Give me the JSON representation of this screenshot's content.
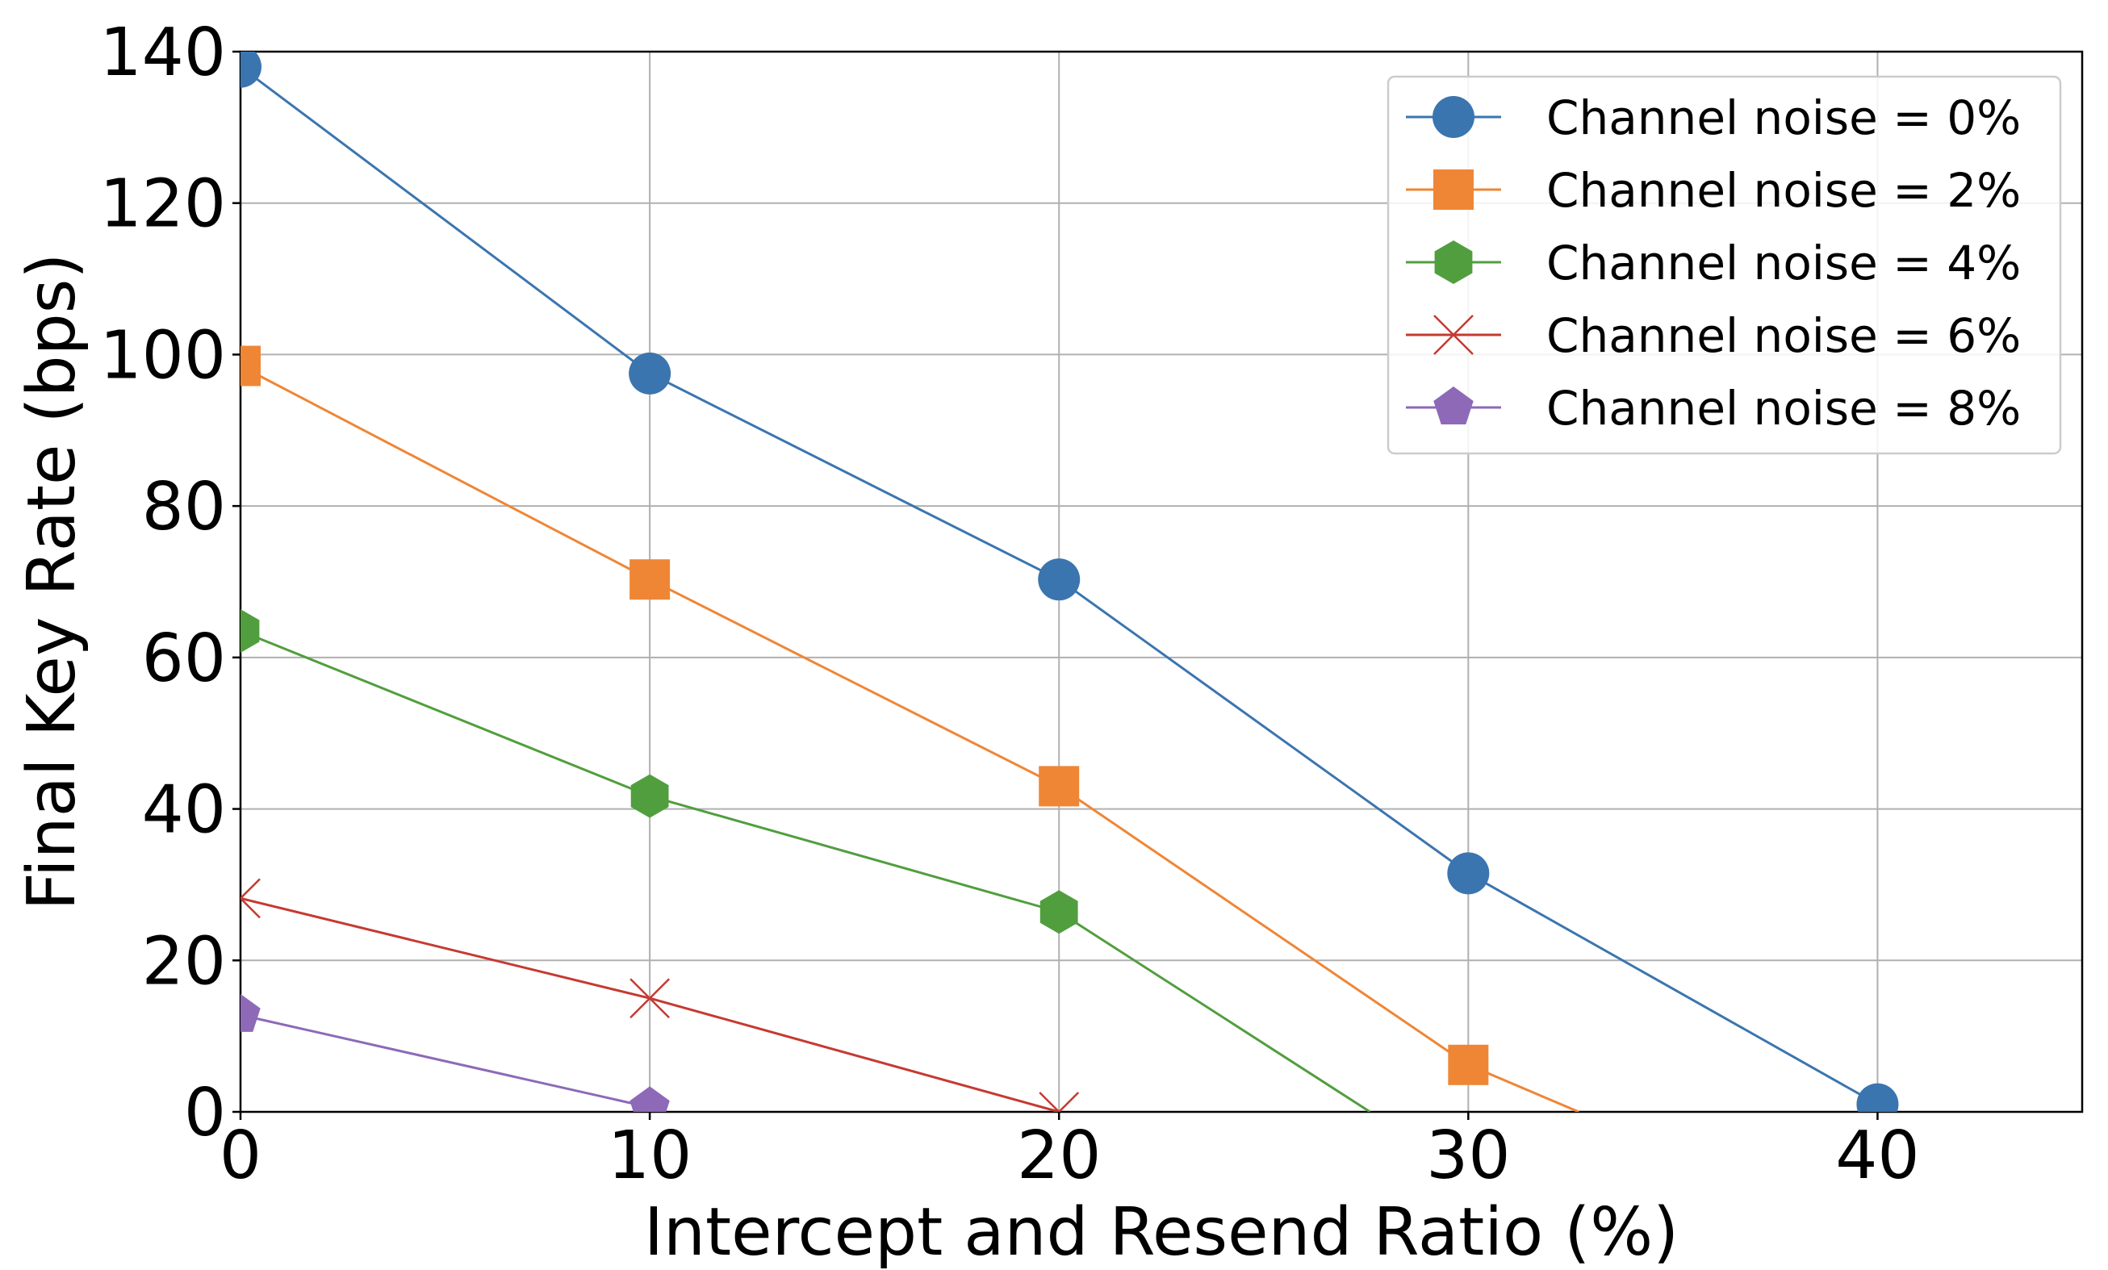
{
  "chart_data": {
    "type": "line",
    "xlabel": "Intercept and Resend Ratio (%)",
    "ylabel": "Final Key Rate (bps)",
    "xlim": [
      0,
      45
    ],
    "ylim": [
      0,
      140
    ],
    "xticks": [
      "0",
      "10",
      "20",
      "30",
      "40"
    ],
    "yticks": [
      "0",
      "20",
      "40",
      "60",
      "80",
      "100",
      "120",
      "140"
    ],
    "grid": true,
    "legend_position": "top-right",
    "series": [
      {
        "name": "Channel noise = 0%",
        "color": "#3b75af",
        "marker": "circle",
        "x": [
          0,
          10,
          20,
          30,
          40
        ],
        "y": [
          138,
          97.5,
          70.3,
          31.5,
          1
        ]
      },
      {
        "name": "Channel noise = 2%",
        "color": "#ef8636",
        "marker": "square",
        "x": [
          0,
          10,
          20,
          30,
          32.7
        ],
        "y": [
          98.5,
          70.3,
          43,
          6.2,
          0
        ]
      },
      {
        "name": "Channel noise = 4%",
        "color": "#519e3e",
        "marker": "hexagon",
        "x": [
          0,
          10,
          20,
          27.6
        ],
        "y": [
          63.5,
          41.7,
          26.4,
          0
        ]
      },
      {
        "name": "Channel noise = 6%",
        "color": "#c53a32",
        "marker": "x",
        "x": [
          0,
          10,
          20
        ],
        "y": [
          28.2,
          15,
          0
        ]
      },
      {
        "name": "Channel noise = 8%",
        "color": "#8d69b8",
        "marker": "pentagon",
        "x": [
          0,
          10
        ],
        "y": [
          12.8,
          0.6
        ]
      }
    ]
  }
}
